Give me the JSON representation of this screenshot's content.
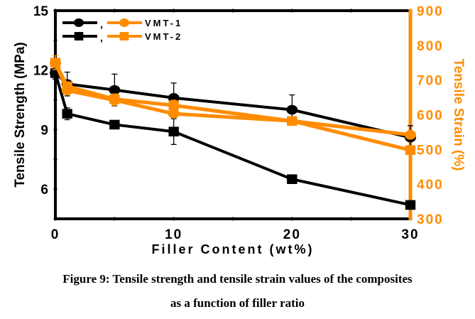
{
  "chart_data": {
    "type": "line",
    "title": "",
    "xlabel": "Filler Content (wt%)",
    "ylabel": "Tensile Strength (MPa)",
    "y2label": "Tensile Strain (%)",
    "xlim": [
      0,
      30
    ],
    "ylim": [
      4.5,
      15
    ],
    "y2lim": [
      300,
      900
    ],
    "xticks": [
      "0",
      "10",
      "20",
      "30"
    ],
    "yticks": [
      "6",
      "9",
      "12",
      "15"
    ],
    "y2ticks": [
      "300",
      "400",
      "500",
      "600",
      "700",
      "800",
      "900"
    ],
    "x": [
      0,
      1,
      5,
      10,
      20,
      30
    ],
    "series": [
      {
        "name": "VMT-1 strength",
        "axis": "left",
        "marker": "circle",
        "color": "#000000",
        "values": [
          11.85,
          11.3,
          11.0,
          10.6,
          10.0,
          8.6
        ],
        "error": [
          0.3,
          0.6,
          0.8,
          0.75,
          0.75,
          0.6
        ]
      },
      {
        "name": "VMT-2 strength",
        "axis": "left",
        "marker": "square",
        "color": "#000000",
        "values": [
          11.85,
          9.8,
          9.25,
          8.9,
          6.5,
          5.2
        ],
        "error": [
          0.3,
          0.3,
          0.15,
          0.65,
          0.2,
          0.2
        ]
      },
      {
        "name": "VMT-1 strain",
        "axis": "right",
        "marker": "circle",
        "color": "#ff8c00",
        "values": [
          750,
          670,
          642,
          603,
          582,
          542
        ],
        "error": [
          20,
          10,
          15,
          10,
          8,
          10
        ]
      },
      {
        "name": "VMT-2 strain",
        "axis": "right",
        "marker": "square",
        "color": "#ff8c00",
        "values": [
          750,
          682,
          645,
          627,
          582,
          498
        ],
        "error": [
          20,
          12,
          15,
          15,
          8,
          5
        ]
      }
    ],
    "legend": {
      "placement": "top-left",
      "entries": [
        {
          "label": "VMT-1",
          "marker": "circle",
          "separator": ","
        },
        {
          "label": "VMT-2",
          "marker": "square",
          "separator": ","
        }
      ]
    },
    "grid": false
  },
  "caption": {
    "line1": "Figure 9: Tensile strength and tensile strain values of the composites",
    "line2": "as a function of filler ratio"
  }
}
